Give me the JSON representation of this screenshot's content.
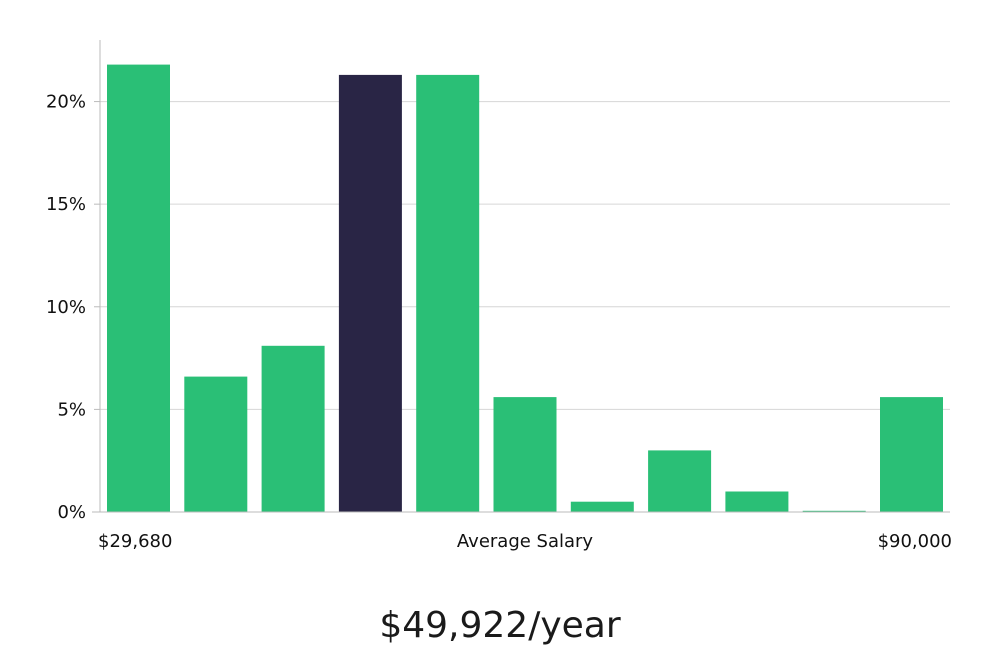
{
  "chart_data": {
    "type": "bar",
    "title": "",
    "xlabel": "Average Salary",
    "ylabel": "",
    "x_min_label": "$29,680",
    "x_max_label": "$90,000",
    "ylim": [
      0,
      23
    ],
    "yticks": [
      0,
      5,
      10,
      15,
      20
    ],
    "ytick_labels": [
      "0%",
      "5%",
      "10%",
      "15%",
      "20%"
    ],
    "values": [
      21.8,
      6.6,
      8.1,
      21.3,
      21.3,
      5.6,
      0.5,
      3.0,
      1.0,
      0.05,
      5.6
    ],
    "highlight_index": 3,
    "grid": true,
    "colors": {
      "bar": "#2abf76",
      "highlight": "#292545",
      "grid": "#d6d6d6",
      "axis": "#bbbbbb"
    }
  },
  "caption": {
    "salary": "$49,922/year"
  }
}
